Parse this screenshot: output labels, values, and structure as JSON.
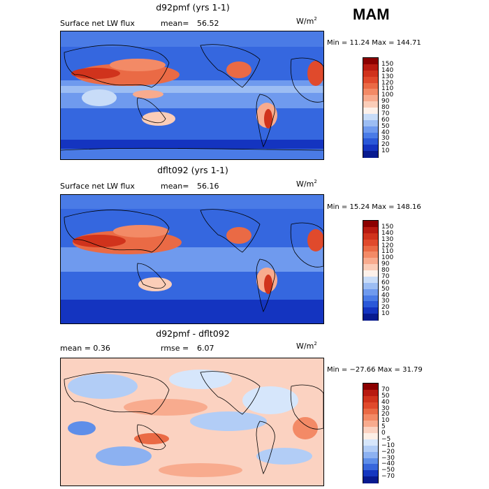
{
  "season": "MAM",
  "units": {
    "text": "W/m",
    "sup": "2"
  },
  "panels": [
    {
      "id": "top",
      "title": "d92pmf (yrs 1-1)",
      "left_label": "Surface net LW flux",
      "stat_label": "mean=",
      "stat_value": "56.52",
      "minmax": "Min =  11.24 Max = 144.71",
      "scale": "abs"
    },
    {
      "id": "middle",
      "title": "dflt092 (yrs 1-1)",
      "left_label": "Surface net LW flux",
      "stat_label": "mean=",
      "stat_value": "56.16",
      "minmax": "Min =  15.24 Max = 148.16",
      "scale": "abs"
    },
    {
      "id": "bottom",
      "title": "d92pmf - dflt092",
      "left_label": "mean =    0.36",
      "stat_label": "rmse =",
      "stat_value": "6.07",
      "minmax": "Min = −27.66 Max =  31.79",
      "scale": "diff"
    }
  ],
  "colorbars": {
    "abs": {
      "labels": [
        "150",
        "140",
        "130",
        "120",
        "110",
        "100",
        "90",
        "80",
        "70",
        "60",
        "50",
        "40",
        "30",
        "20",
        "10"
      ],
      "colors": [
        "#8b0000",
        "#b81a10",
        "#d0331c",
        "#e04a2c",
        "#ea6a45",
        "#f38a66",
        "#f8ab8e",
        "#fbcdb8",
        "#fdf1ea",
        "#c8dcf8",
        "#9cbdf3",
        "#6f9aee",
        "#4a7be6",
        "#2a58d8",
        "#1434c0",
        "#081a8f"
      ]
    },
    "diff": {
      "labels": [
        "70",
        "50",
        "40",
        "30",
        "20",
        "10",
        "5",
        "0",
        "−5",
        "−10",
        "−20",
        "−30",
        "−40",
        "−50",
        "−70"
      ],
      "colors": [
        "#8b0000",
        "#b81a10",
        "#d0331c",
        "#e04a2c",
        "#ea6a45",
        "#f38a66",
        "#f8ab8e",
        "#fbd2c1",
        "#fdefe6",
        "#d6e6fb",
        "#b2cdf6",
        "#8cb1f1",
        "#5e8ee9",
        "#3766db",
        "#1537c0",
        "#081a8f"
      ]
    }
  }
}
